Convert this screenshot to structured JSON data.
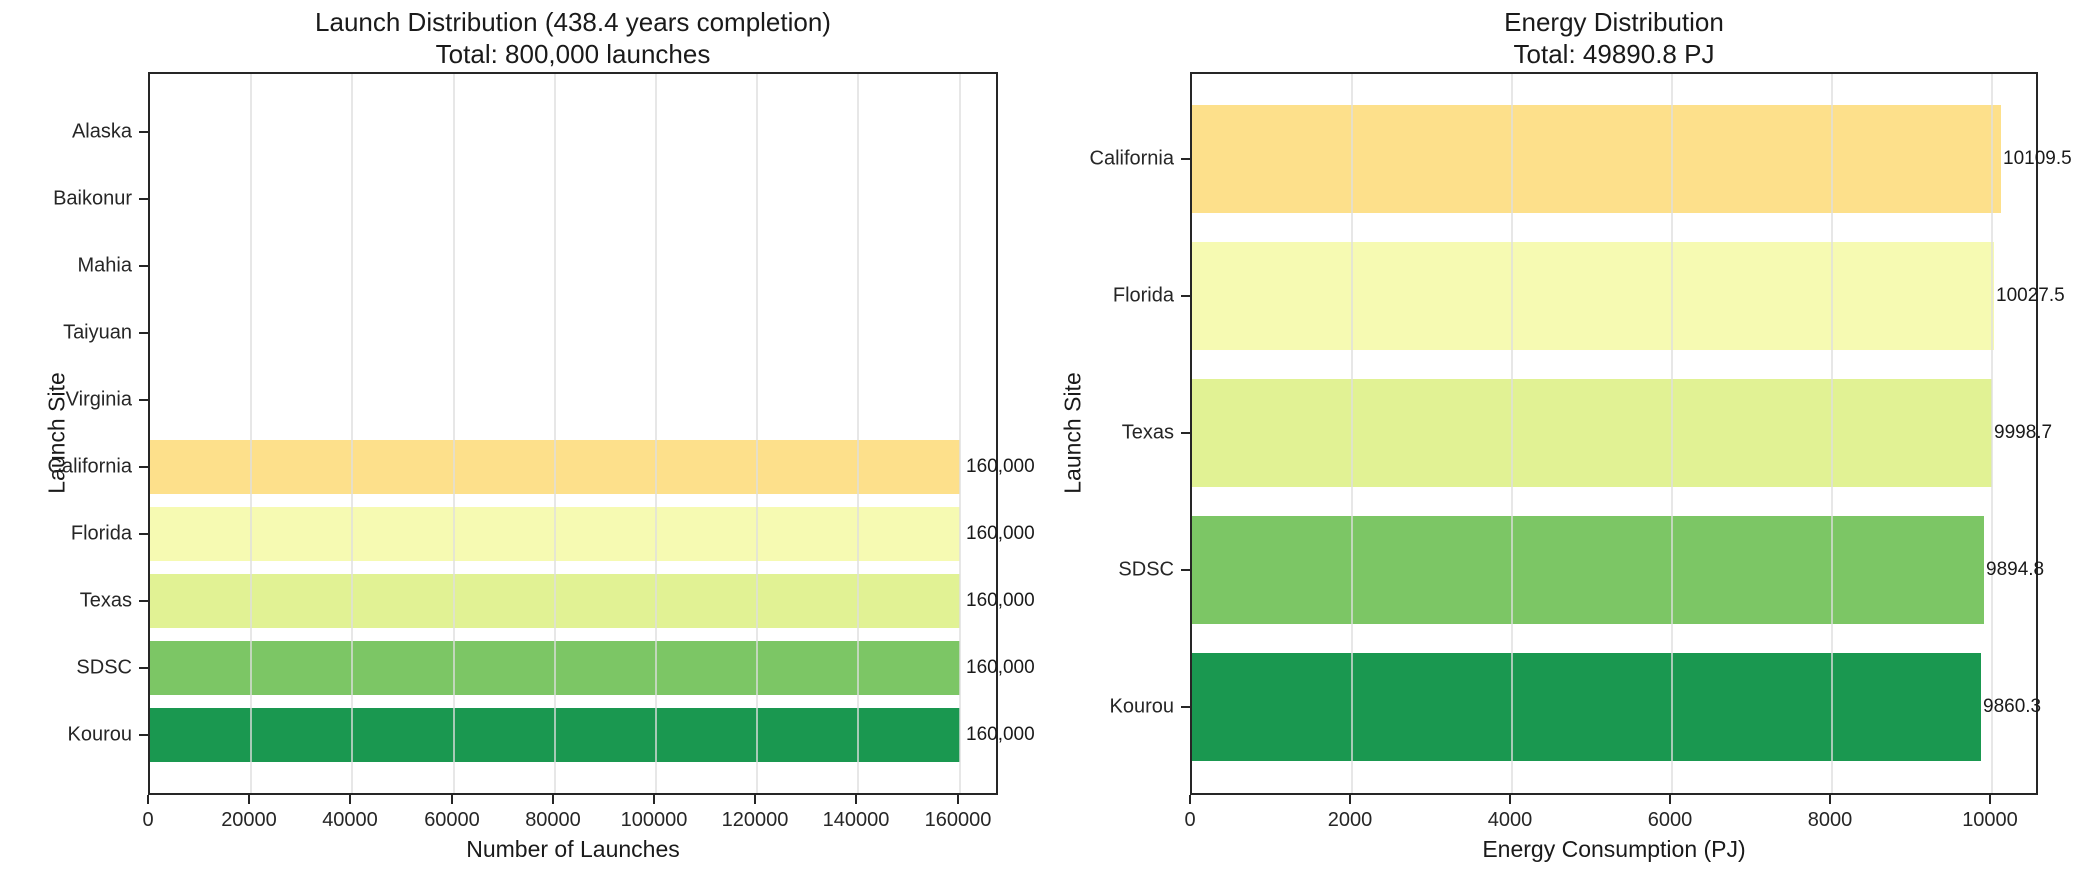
{
  "figure_background": "#ffffff",
  "spine_color": "#262626",
  "gridline_color": "#dedede",
  "chart_data": [
    {
      "type": "bar",
      "orientation": "horizontal",
      "title": "Launch Distribution (438.4 years completion)",
      "subtitle": "Total: 800,000 launches",
      "xlabel": "Number of Launches",
      "ylabel": "Launch Site",
      "categories": [
        "Alaska",
        "Baikonur",
        "Mahia",
        "Taiyuan",
        "Virginia",
        "California",
        "Florida",
        "Texas",
        "SDSC",
        "Kourou"
      ],
      "values": [
        0,
        0,
        0,
        0,
        0,
        160000,
        160000,
        160000,
        160000,
        160000
      ],
      "bar_labels": [
        "",
        "",
        "",
        "",
        "",
        "160,000",
        "160,000",
        "160,000",
        "160,000",
        "160,000"
      ],
      "colors": [
        null,
        null,
        null,
        null,
        null,
        "#fde08b",
        "#f6fab2",
        "#e1f294",
        "#7cc665",
        "#1a9850"
      ],
      "xlim": [
        0,
        168000
      ],
      "xticks": [
        0,
        20000,
        40000,
        60000,
        80000,
        100000,
        120000,
        140000,
        160000
      ],
      "xtick_labels": [
        "0",
        "20000",
        "40000",
        "60000",
        "80000",
        "100000",
        "120000",
        "140000",
        "160000"
      ],
      "grid": "vertical",
      "legend": "none"
    },
    {
      "type": "bar",
      "orientation": "horizontal",
      "title": "Energy Distribution",
      "subtitle": "Total: 49890.8 PJ",
      "xlabel": "Energy Consumption (PJ)",
      "ylabel": "Launch Site",
      "categories": [
        "California",
        "Florida",
        "Texas",
        "SDSC",
        "Kourou"
      ],
      "values": [
        10109.5,
        10027.5,
        9998.7,
        9894.8,
        9860.3
      ],
      "bar_labels": [
        "10109.5",
        "10027.5",
        "9998.7",
        "9894.8",
        "9860.3"
      ],
      "colors": [
        "#fde08b",
        "#f6fab2",
        "#e1f294",
        "#7cc665",
        "#1a9850"
      ],
      "xlim": [
        0,
        10600
      ],
      "xticks": [
        0,
        2000,
        4000,
        6000,
        8000,
        10000
      ],
      "xtick_labels": [
        "0",
        "2000",
        "4000",
        "6000",
        "8000",
        "10000"
      ],
      "grid": "vertical",
      "legend": "none"
    }
  ]
}
